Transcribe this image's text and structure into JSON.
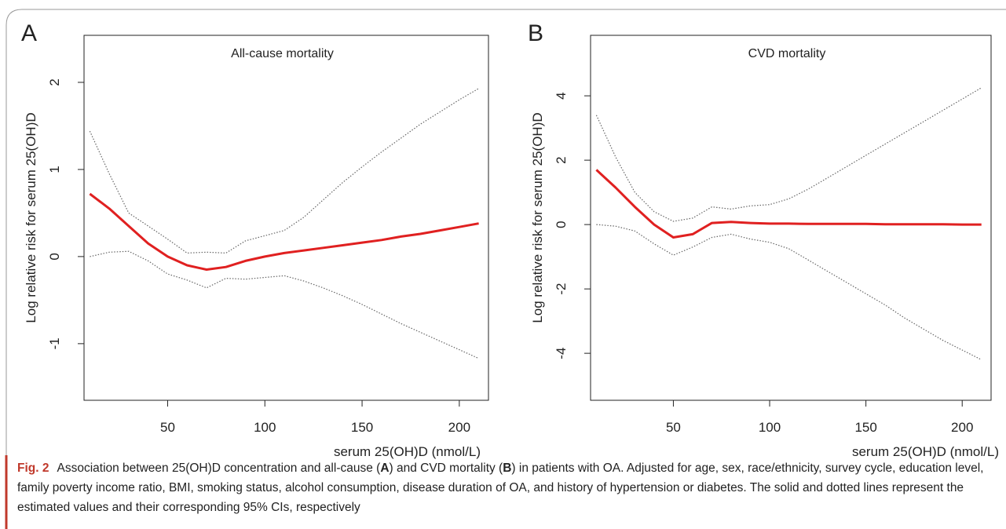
{
  "chart_data": [
    {
      "type": "line",
      "panel_label": "A",
      "title": "All-cause mortality",
      "x_label": "serum 25(OH)D (nmol/L)",
      "y_label": "Log relative risk for serum 25(OH)D",
      "x": [
        10,
        20,
        30,
        40,
        50,
        60,
        70,
        80,
        90,
        100,
        110,
        120,
        130,
        140,
        150,
        160,
        170,
        180,
        190,
        200,
        210
      ],
      "series": [
        {
          "color": "#e02020",
          "style": "solid",
          "values": [
            0.72,
            0.55,
            0.35,
            0.15,
            0.0,
            -0.1,
            -0.15,
            -0.12,
            -0.05,
            0.0,
            0.04,
            0.07,
            0.1,
            0.13,
            0.16,
            0.19,
            0.23,
            0.26,
            0.3,
            0.34,
            0.38
          ]
        },
        {
          "color": "#666666",
          "style": "dotted",
          "values": [
            1.44,
            0.95,
            0.5,
            0.35,
            0.2,
            0.04,
            0.05,
            0.04,
            0.18,
            0.24,
            0.3,
            0.45,
            0.65,
            0.85,
            1.03,
            1.2,
            1.36,
            1.52,
            1.66,
            1.8,
            1.93
          ]
        },
        {
          "color": "#666666",
          "style": "dotted",
          "values": [
            0.0,
            0.05,
            0.06,
            -0.05,
            -0.2,
            -0.27,
            -0.36,
            -0.25,
            -0.26,
            -0.24,
            -0.22,
            -0.28,
            -0.36,
            -0.45,
            -0.55,
            -0.66,
            -0.77,
            -0.87,
            -0.97,
            -1.07,
            -1.17
          ]
        }
      ],
      "xlim": [
        7,
        215
      ],
      "xticks": [
        50,
        100,
        150,
        200
      ],
      "ylim": [
        -1.65,
        2.54
      ],
      "yticks": [
        -1,
        0,
        1,
        2
      ]
    },
    {
      "type": "line",
      "panel_label": "B",
      "title": "CVD mortality",
      "x_label": "serum 25(OH)D (nmol/L)",
      "y_label": "Log relative risk for serum 25(OH)D",
      "x": [
        10,
        20,
        30,
        40,
        50,
        60,
        70,
        80,
        90,
        100,
        110,
        120,
        130,
        140,
        150,
        160,
        170,
        180,
        190,
        200,
        210
      ],
      "series": [
        {
          "color": "#e02020",
          "style": "solid",
          "values": [
            1.7,
            1.15,
            0.55,
            0.0,
            -0.4,
            -0.3,
            0.05,
            0.08,
            0.05,
            0.03,
            0.03,
            0.02,
            0.02,
            0.02,
            0.02,
            0.01,
            0.01,
            0.01,
            0.01,
            0.0,
            0.0
          ]
        },
        {
          "color": "#666666",
          "style": "dotted",
          "values": [
            3.4,
            2.1,
            1.0,
            0.4,
            0.1,
            0.2,
            0.55,
            0.48,
            0.58,
            0.62,
            0.8,
            1.1,
            1.45,
            1.8,
            2.15,
            2.5,
            2.85,
            3.2,
            3.55,
            3.9,
            4.25
          ]
        },
        {
          "color": "#666666",
          "style": "dotted",
          "values": [
            0.0,
            -0.05,
            -0.2,
            -0.6,
            -0.95,
            -0.7,
            -0.4,
            -0.3,
            -0.45,
            -0.55,
            -0.75,
            -1.1,
            -1.45,
            -1.8,
            -2.15,
            -2.5,
            -2.9,
            -3.25,
            -3.6,
            -3.9,
            -4.2
          ]
        }
      ],
      "xlim": [
        7,
        215
      ],
      "xticks": [
        50,
        100,
        150,
        200
      ],
      "ylim": [
        -5.46,
        5.88
      ],
      "yticks": [
        -4,
        -2,
        0,
        2,
        4
      ]
    }
  ],
  "caption": {
    "label": "Fig. 2",
    "parts": [
      "Association between 25(OH)D concentration and all-cause (",
      "A",
      ") and CVD mortality (",
      "B",
      ") in patients with OA. Adjusted for age, sex, race/ethnicity, survey cycle, education level, family poverty income ratio, BMI, smoking status, alcohol consumption, disease duration of OA, and history of hypertension or diabetes. The solid and dotted lines represent the estimated values and their corresponding 95% CIs, respectively"
    ]
  }
}
